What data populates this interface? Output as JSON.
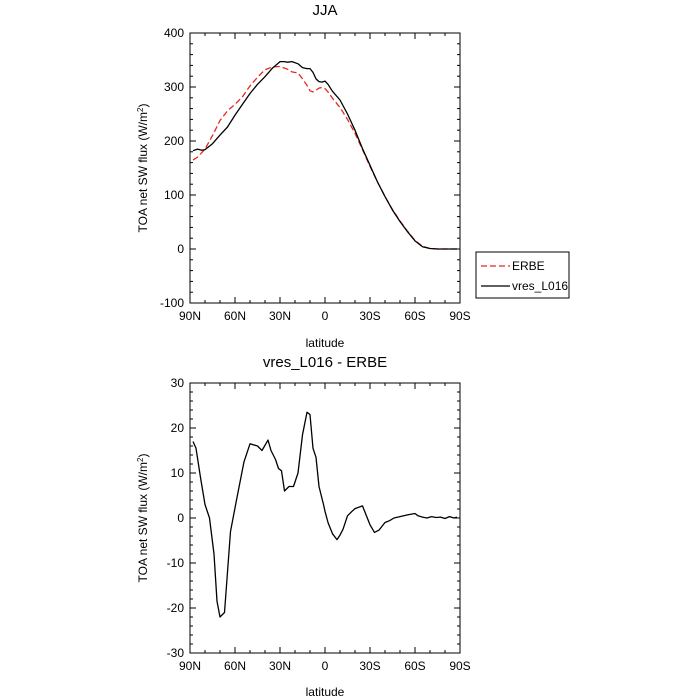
{
  "chart_data": [
    {
      "type": "line",
      "title": "JJA",
      "xlabel": "latitude",
      "ylabel": "TOA net SW flux (W/m",
      "ylabel_sup": "2",
      "ylabel_end": ")",
      "xlim": [
        90,
        -90
      ],
      "ylim": [
        -100,
        400
      ],
      "xticks": [
        90,
        60,
        30,
        0,
        -30,
        -60,
        -90
      ],
      "xtick_labels": [
        "90N",
        "60N",
        "30N",
        "0",
        "30S",
        "60S",
        "90S"
      ],
      "yticks": [
        -100,
        0,
        100,
        200,
        300,
        400
      ],
      "ytick_labels": [
        "-100",
        "0",
        "100",
        "200",
        "300",
        "400"
      ],
      "legend_position": "outside-right",
      "series": [
        {
          "name": "ERBE",
          "color": "#e8281e",
          "dash": "dashed",
          "x": [
            88,
            85,
            80,
            75,
            70,
            65,
            60,
            55,
            50,
            45,
            40,
            35,
            30,
            25,
            22,
            18,
            15,
            12,
            10,
            8,
            6,
            4,
            2,
            0,
            -2,
            -5,
            -10,
            -15,
            -20,
            -25,
            -30,
            -35,
            -40,
            -45,
            -50,
            -55,
            -60,
            -65,
            -70,
            -75,
            -80,
            -85,
            -88
          ],
          "y": [
            165,
            170,
            185,
            210,
            238,
            256,
            268,
            282,
            302,
            318,
            332,
            337,
            338,
            333,
            328,
            326,
            315,
            303,
            293,
            291,
            294,
            298,
            299,
            297,
            291,
            279,
            262,
            240,
            214,
            184,
            153,
            124,
            97,
            73,
            52,
            33,
            16,
            5,
            1,
            0,
            0,
            0,
            0
          ]
        },
        {
          "name": "vres_L016",
          "color": "#000000",
          "dash": "solid",
          "x": [
            88,
            85,
            82,
            80,
            75,
            70,
            65,
            60,
            55,
            50,
            45,
            40,
            35,
            32,
            30,
            27,
            25,
            22,
            18,
            15,
            12,
            10,
            8,
            6,
            4,
            2,
            0,
            -2,
            -5,
            -10,
            -15,
            -20,
            -25,
            -30,
            -35,
            -40,
            -45,
            -50,
            -55,
            -60,
            -65,
            -70,
            -75,
            -80,
            -85,
            -88
          ],
          "y": [
            182,
            185,
            183,
            184,
            195,
            211,
            226,
            248,
            268,
            288,
            305,
            319,
            335,
            342,
            347,
            347,
            346,
            347,
            343,
            336,
            334,
            334,
            327,
            315,
            310,
            309,
            311,
            305,
            292,
            276,
            250,
            220,
            186,
            155,
            124,
            97,
            72,
            51,
            32,
            15,
            4,
            1,
            0,
            0,
            0,
            0
          ]
        }
      ]
    },
    {
      "type": "line",
      "title": "vres_L016 - ERBE",
      "xlabel": "latitude",
      "ylabel": "TOA net SW flux (W/m",
      "ylabel_sup": "2",
      "ylabel_end": ")",
      "xlim": [
        90,
        -90
      ],
      "ylim": [
        -30,
        30
      ],
      "xticks": [
        90,
        60,
        30,
        0,
        -30,
        -60,
        -90
      ],
      "xtick_labels": [
        "90N",
        "60N",
        "30N",
        "0",
        "30S",
        "60S",
        "90S"
      ],
      "yticks": [
        -30,
        -20,
        -10,
        0,
        10,
        20,
        30
      ],
      "ytick_labels": [
        "-30",
        "-20",
        "-10",
        "0",
        "10",
        "20",
        "30"
      ],
      "series": [
        {
          "color": "#000000",
          "dash": "solid",
          "x": [
            88,
            86,
            83,
            80,
            77,
            74,
            72,
            70,
            67,
            63,
            59,
            54,
            50,
            45,
            42,
            38,
            36,
            33,
            31,
            29,
            27,
            24,
            21,
            18,
            15,
            12,
            10,
            8,
            6,
            4,
            1,
            0,
            -2,
            -5,
            -8,
            -10,
            -12,
            -15,
            -18,
            -20,
            -25,
            -30,
            -33,
            -36,
            -40,
            -43,
            -46,
            -50,
            -55,
            -60,
            -62,
            -65,
            -68,
            -71,
            -74,
            -77,
            -80,
            -83,
            -86,
            -88
          ],
          "y": [
            17,
            15.5,
            9,
            3,
            0,
            -8,
            -18.5,
            -22,
            -21,
            -3,
            4,
            12.5,
            16.5,
            16,
            15,
            17.3,
            15,
            13,
            11,
            10.5,
            6,
            7,
            7,
            10,
            18.5,
            23.5,
            23,
            15.5,
            13.5,
            7,
            3,
            1.5,
            -1,
            -3.5,
            -4.8,
            -3.8,
            -2.5,
            0.5,
            1.5,
            2.1,
            2.7,
            -1.5,
            -3.2,
            -2.7,
            -1,
            -0.6,
            0,
            0.3,
            0.7,
            1,
            0.5,
            0.2,
            0,
            0.3,
            0.1,
            0.2,
            -0.1,
            0.3,
            0,
            0.2
          ]
        }
      ]
    }
  ]
}
